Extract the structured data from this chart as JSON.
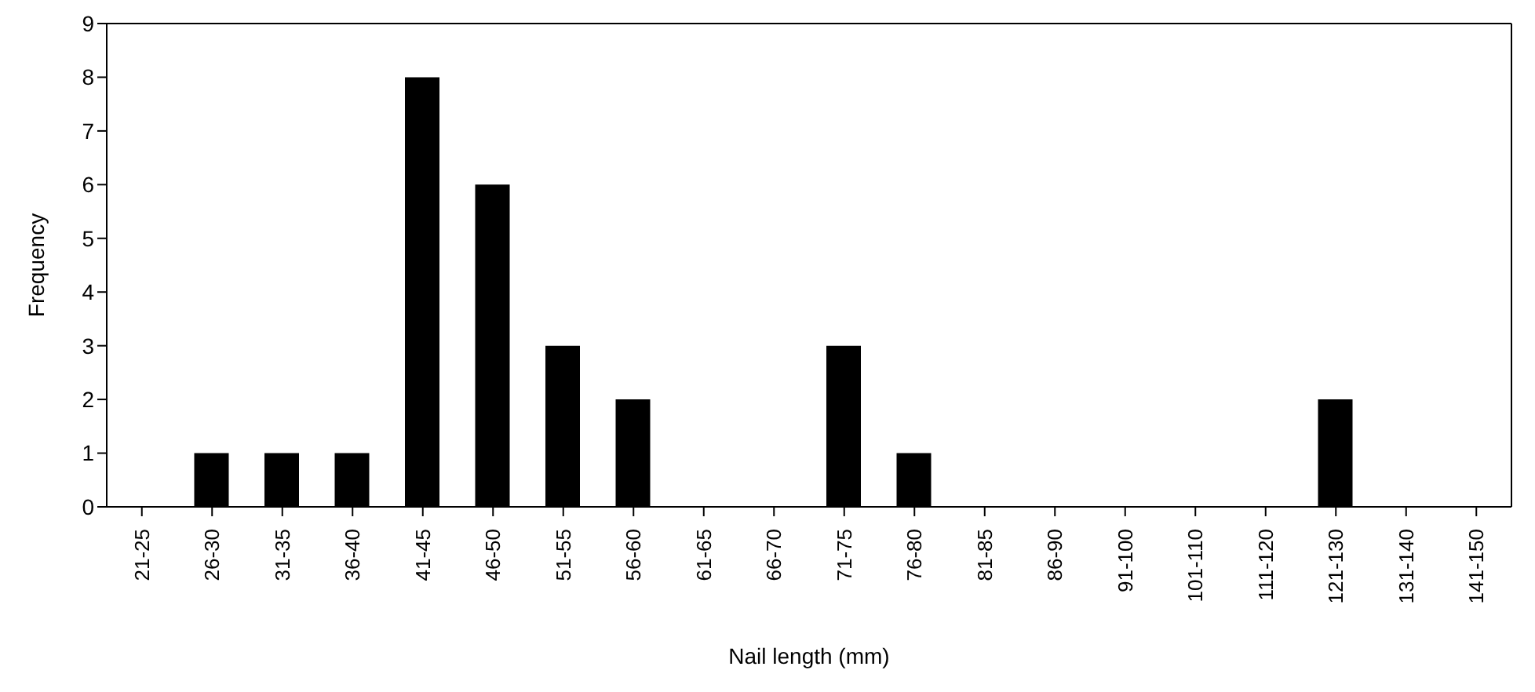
{
  "chart_data": {
    "type": "bar",
    "xlabel": "Nail length (mm)",
    "ylabel": "Frequency",
    "categories": [
      "21-25",
      "26-30",
      "31-35",
      "36-40",
      "41-45",
      "46-50",
      "51-55",
      "56-60",
      "61-65",
      "66-70",
      "71-75",
      "76-80",
      "81-85",
      "86-90",
      "91-100",
      "101-110",
      "111-120",
      "121-130",
      "131-140",
      "141-150"
    ],
    "values": [
      0,
      1,
      1,
      1,
      8,
      6,
      3,
      2,
      0,
      0,
      3,
      1,
      0,
      0,
      0,
      0,
      0,
      2,
      0,
      0
    ],
    "color": "#000000",
    "ylim": [
      0,
      9
    ],
    "yticks": [
      0,
      1,
      2,
      3,
      4,
      5,
      6,
      7,
      8,
      9
    ],
    "grid": false,
    "legend": false
  }
}
